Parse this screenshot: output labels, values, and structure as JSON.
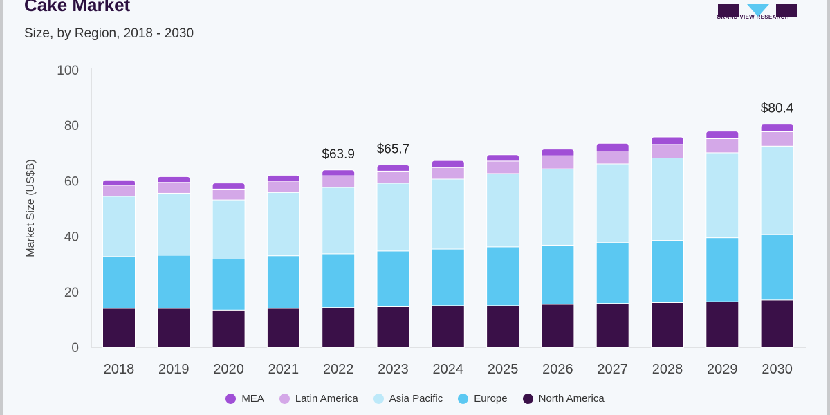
{
  "logo_text": "GRAND VIEW RESEARCH",
  "chart_data": {
    "type": "bar",
    "stacked": true,
    "title": "Cake Market",
    "subtitle": "Size, by Region, 2018 - 2030",
    "xlabel": "",
    "ylabel": "Market Size (US$B)",
    "ylim": [
      0,
      100
    ],
    "yticks": [
      0,
      20,
      40,
      60,
      80,
      100
    ],
    "grid": false,
    "legend_position": "bottom",
    "categories": [
      "2018",
      "2019",
      "2020",
      "2021",
      "2022",
      "2023",
      "2024",
      "2025",
      "2026",
      "2027",
      "2028",
      "2029",
      "2030"
    ],
    "series": [
      {
        "name": "North America",
        "color": "#3a1048",
        "values": [
          14.0,
          14.0,
          13.4,
          14.0,
          14.3,
          14.6,
          15.0,
          15.0,
          15.5,
          15.8,
          16.1,
          16.4,
          17.0
        ]
      },
      {
        "name": "Europe",
        "color": "#5bc8f2",
        "values": [
          18.7,
          19.2,
          18.4,
          19.0,
          19.4,
          20.1,
          20.4,
          21.2,
          21.3,
          21.9,
          22.4,
          23.1,
          23.6
        ]
      },
      {
        "name": "Asia Pacific",
        "color": "#bde9f9",
        "values": [
          21.7,
          22.3,
          21.3,
          22.8,
          23.9,
          24.4,
          25.2,
          26.4,
          27.5,
          28.4,
          29.7,
          30.6,
          31.9
        ]
      },
      {
        "name": "Latin America",
        "color": "#d4a8e8",
        "values": [
          4.0,
          3.9,
          3.9,
          4.1,
          4.2,
          4.4,
          4.2,
          4.5,
          4.7,
          4.6,
          4.9,
          5.1,
          5.2
        ]
      },
      {
        "name": "MEA",
        "color": "#a04fd6",
        "values": [
          1.9,
          2.1,
          2.2,
          2.1,
          2.1,
          2.2,
          2.5,
          2.3,
          2.4,
          2.8,
          2.7,
          2.7,
          2.7
        ]
      }
    ],
    "legend_order": [
      "MEA",
      "Latin America",
      "Asia Pacific",
      "Europe",
      "North America"
    ],
    "annotations": [
      {
        "category": "2022",
        "text": "$63.9"
      },
      {
        "category": "2023",
        "text": "$65.7"
      },
      {
        "category": "2030",
        "text": "$80.4"
      }
    ]
  }
}
